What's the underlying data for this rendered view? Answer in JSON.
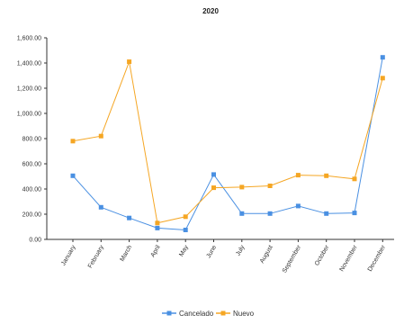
{
  "chart_data": {
    "type": "line",
    "title": "2020",
    "xlabel": "",
    "ylabel": "",
    "categories": [
      "January",
      "February",
      "March",
      "April",
      "May",
      "June",
      "July",
      "August",
      "September",
      "October",
      "November",
      "December"
    ],
    "ylim": [
      0,
      1600
    ],
    "yticks": [
      "0.00",
      "200.00",
      "400.00",
      "600.00",
      "800.00",
      "1,000.00",
      "1,200.00",
      "1,400.00",
      "1,600.00"
    ],
    "grid": false,
    "legend": "bottom-center",
    "series": [
      {
        "name": "Cancelado",
        "color": "#4a90e2",
        "values": [
          505,
          255,
          170,
          90,
          75,
          515,
          205,
          205,
          265,
          205,
          210,
          1445
        ]
      },
      {
        "name": "Nuevo",
        "color": "#f5a623",
        "values": [
          780,
          820,
          1410,
          130,
          180,
          410,
          415,
          425,
          510,
          505,
          480,
          1280
        ]
      }
    ]
  }
}
